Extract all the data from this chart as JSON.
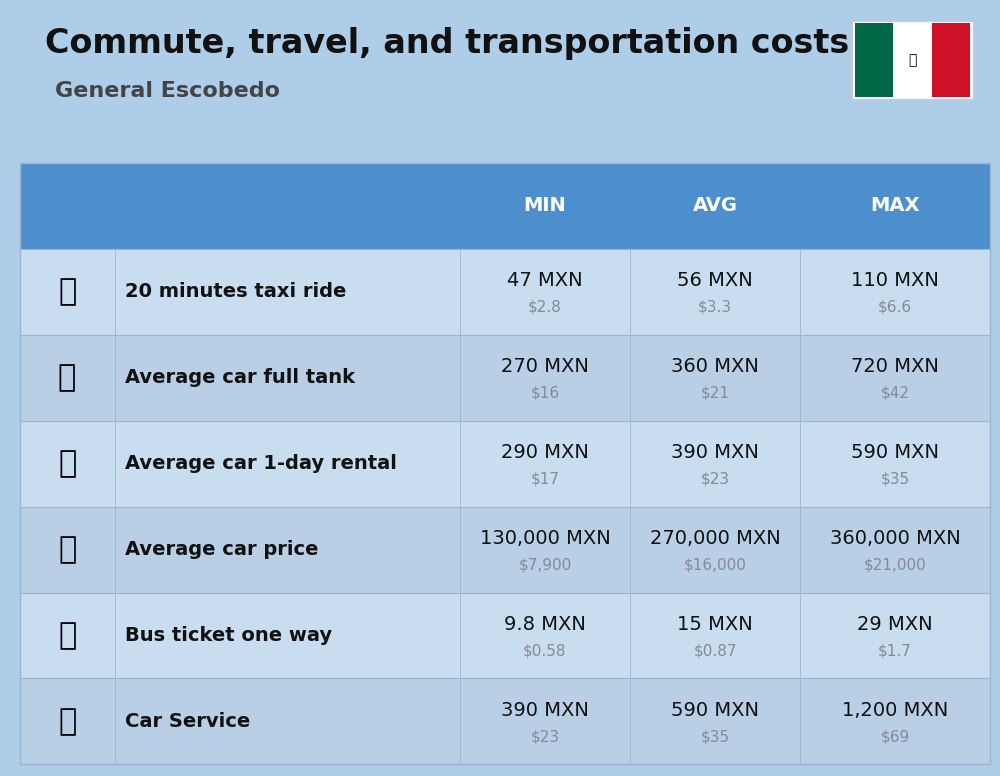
{
  "title": "Commute, travel, and transportation costs",
  "subtitle": "General Escobedo",
  "background_color": "#aecde8",
  "header_bg_color": "#4d8fcc",
  "header_text_color": "#ffffff",
  "row_colors": [
    "#c8ddf0",
    "#b8cfe6"
  ],
  "label_color": "#111111",
  "value_color": "#111111",
  "usd_color": "#888899",
  "col_headers": [
    "MIN",
    "AVG",
    "MAX"
  ],
  "rows": [
    {
      "label": "20 minutes taxi ride",
      "min_mxn": "47 MXN",
      "min_usd": "$2.8",
      "avg_mxn": "56 MXN",
      "avg_usd": "$3.3",
      "max_mxn": "110 MXN",
      "max_usd": "$6.6"
    },
    {
      "label": "Average car full tank",
      "min_mxn": "270 MXN",
      "min_usd": "$16",
      "avg_mxn": "360 MXN",
      "avg_usd": "$21",
      "max_mxn": "720 MXN",
      "max_usd": "$42"
    },
    {
      "label": "Average car 1-day rental",
      "min_mxn": "290 MXN",
      "min_usd": "$17",
      "avg_mxn": "390 MXN",
      "avg_usd": "$23",
      "max_mxn": "590 MXN",
      "max_usd": "$35"
    },
    {
      "label": "Average car price",
      "min_mxn": "130,000 MXN",
      "min_usd": "$7,900",
      "avg_mxn": "270,000 MXN",
      "avg_usd": "$16,000",
      "max_mxn": "360,000 MXN",
      "max_usd": "$21,000"
    },
    {
      "label": "Bus ticket one way",
      "min_mxn": "9.8 MXN",
      "min_usd": "$0.58",
      "avg_mxn": "15 MXN",
      "avg_usd": "$0.87",
      "max_mxn": "29 MXN",
      "max_usd": "$1.7"
    },
    {
      "label": "Car Service",
      "min_mxn": "390 MXN",
      "min_usd": "$23",
      "avg_mxn": "590 MXN",
      "avg_usd": "$35",
      "max_mxn": "1,200 MXN",
      "max_usd": "$69"
    }
  ],
  "title_fontsize": 24,
  "subtitle_fontsize": 16,
  "header_fontsize": 14,
  "label_fontsize": 14,
  "value_fontsize": 14,
  "usd_fontsize": 11,
  "icon_texts": [
    "🚕",
    "⛽️",
    "🚙",
    "🚗",
    "🚌",
    "🔧"
  ],
  "flag_green": "#006847",
  "flag_white": "#FFFFFF",
  "flag_red": "#CE1126"
}
